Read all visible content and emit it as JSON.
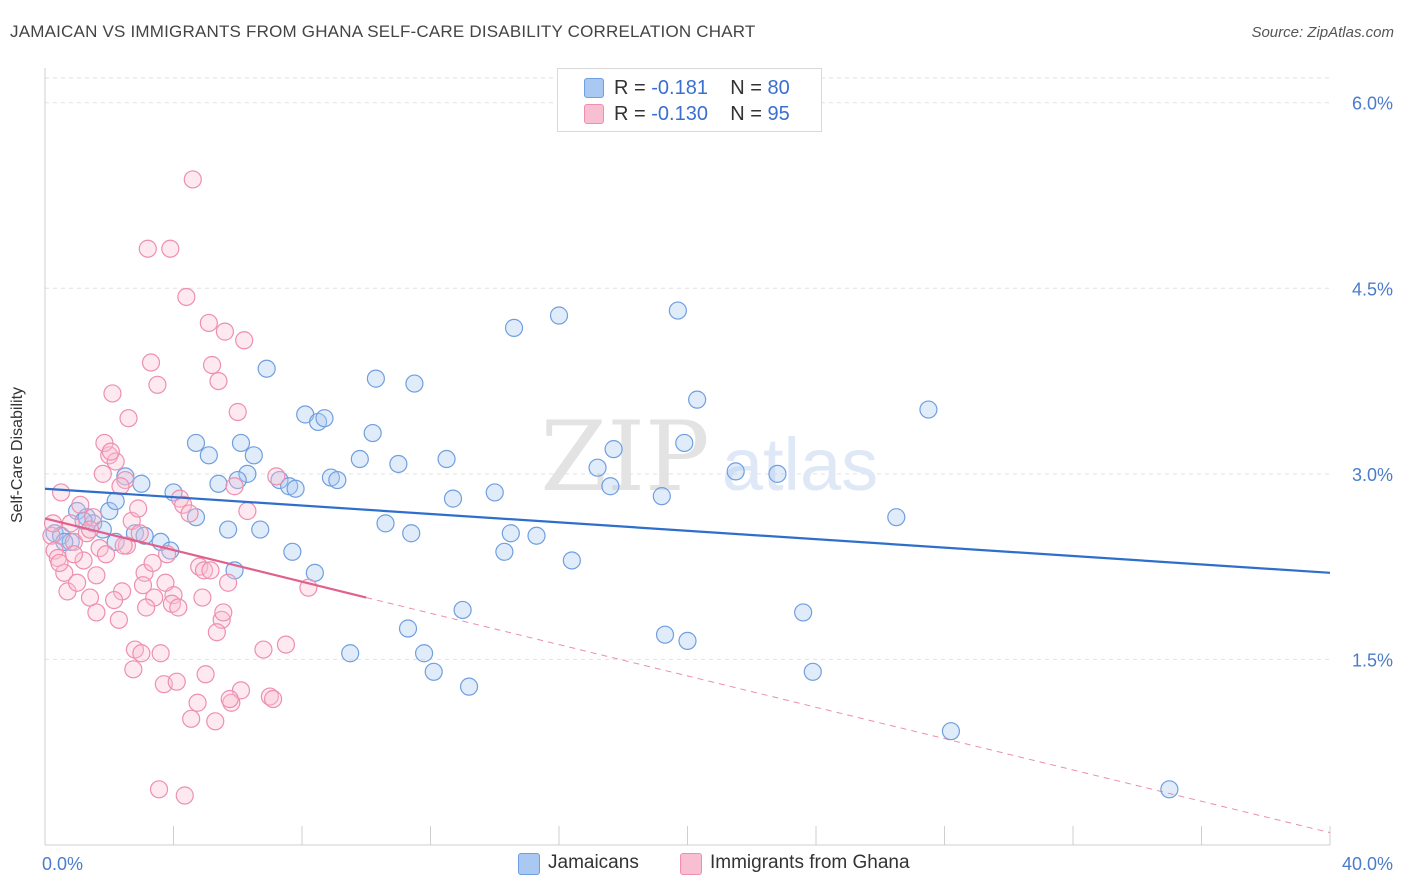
{
  "header": {
    "title": "JAMAICAN VS IMMIGRANTS FROM GHANA SELF-CARE DISABILITY CORRELATION CHART",
    "source": "Source: ZipAtlas.com"
  },
  "watermark": {
    "zip": "ZIP",
    "atlas": "atlas"
  },
  "legend": {
    "r_label": "R =",
    "n_label": "N =",
    "rows": [
      {
        "r": "-0.181",
        "n": "80",
        "color": "#a9c8f2",
        "border": "#6f9fe0"
      },
      {
        "r": "-0.130",
        "n": "95",
        "color": "#f8bfd2",
        "border": "#ee8fb0"
      }
    ]
  },
  "bottom_legend": [
    {
      "label": "Jamaicans",
      "color": "#a9c8f2",
      "border": "#6f9fe0"
    },
    {
      "label": "Immigrants from Ghana",
      "color": "#f8bfd2",
      "border": "#ee8fb0"
    }
  ],
  "chart_data": {
    "type": "scatter",
    "ylabel": "Self-Care Disability",
    "xlim": [
      0,
      40
    ],
    "ylim": [
      0,
      6.2
    ],
    "x_tick_labels": [
      {
        "value": 0,
        "label": "0.0%"
      },
      {
        "value": 40,
        "label": "40.0%"
      }
    ],
    "y_ticks": [
      {
        "value": 1.5,
        "label": "1.5%"
      },
      {
        "value": 3.0,
        "label": "3.0%"
      },
      {
        "value": 4.5,
        "label": "4.5%"
      },
      {
        "value": 6.0,
        "label": "6.0%"
      }
    ],
    "x_minor_ticks": [
      0,
      4,
      8,
      12,
      16,
      20,
      24,
      28,
      32,
      36,
      40
    ],
    "grid": true,
    "series": [
      {
        "name": "Jamaicans",
        "color": "#6f9fe0",
        "fill": "rgba(169,200,242,0.35)",
        "trend": {
          "x0": 0,
          "y0": 2.88,
          "x1": 40,
          "y1": 2.2,
          "color": "#2f6fcc"
        },
        "points": [
          [
            0.3,
            2.52
          ],
          [
            0.5,
            2.5
          ],
          [
            0.8,
            2.45
          ],
          [
            1.0,
            2.7
          ],
          [
            1.3,
            2.65
          ],
          [
            1.5,
            2.6
          ],
          [
            1.8,
            2.55
          ],
          [
            2.0,
            2.7
          ],
          [
            2.2,
            2.45
          ],
          [
            2.5,
            2.98
          ],
          [
            2.8,
            2.52
          ],
          [
            3.0,
            2.92
          ],
          [
            3.6,
            2.45
          ],
          [
            3.9,
            2.38
          ],
          [
            4.0,
            2.85
          ],
          [
            4.7,
            2.65
          ],
          [
            4.7,
            3.25
          ],
          [
            5.1,
            3.15
          ],
          [
            5.4,
            2.92
          ],
          [
            5.7,
            2.55
          ],
          [
            5.9,
            2.22
          ],
          [
            6.1,
            3.25
          ],
          [
            6.3,
            3.0
          ],
          [
            6.5,
            3.15
          ],
          [
            6.7,
            2.55
          ],
          [
            6.9,
            3.85
          ],
          [
            7.3,
            2.95
          ],
          [
            7.6,
            2.9
          ],
          [
            7.7,
            2.37
          ],
          [
            7.8,
            2.88
          ],
          [
            8.1,
            3.48
          ],
          [
            8.5,
            3.42
          ],
          [
            8.7,
            3.45
          ],
          [
            8.9,
            2.97
          ],
          [
            9.1,
            2.95
          ],
          [
            8.4,
            2.2
          ],
          [
            9.5,
            1.55
          ],
          [
            9.8,
            3.12
          ],
          [
            10.2,
            3.33
          ],
          [
            10.3,
            3.77
          ],
          [
            10.6,
            2.6
          ],
          [
            11.0,
            3.08
          ],
          [
            11.3,
            1.75
          ],
          [
            11.4,
            2.52
          ],
          [
            11.5,
            3.73
          ],
          [
            11.8,
            1.55
          ],
          [
            12.1,
            1.4
          ],
          [
            12.5,
            3.12
          ],
          [
            12.7,
            2.8
          ],
          [
            13.0,
            1.9
          ],
          [
            13.2,
            1.28
          ],
          [
            14.0,
            2.85
          ],
          [
            14.3,
            2.37
          ],
          [
            14.5,
            2.52
          ],
          [
            14.6,
            4.18
          ],
          [
            15.3,
            2.5
          ],
          [
            16.0,
            4.28
          ],
          [
            16.4,
            2.3
          ],
          [
            17.2,
            3.05
          ],
          [
            17.6,
            2.9
          ],
          [
            17.7,
            3.2
          ],
          [
            19.2,
            2.82
          ],
          [
            19.3,
            1.7
          ],
          [
            19.7,
            4.32
          ],
          [
            19.9,
            3.25
          ],
          [
            20.0,
            1.65
          ],
          [
            20.3,
            3.6
          ],
          [
            21.5,
            3.02
          ],
          [
            22.8,
            3.0
          ],
          [
            23.6,
            1.88
          ],
          [
            23.9,
            1.4
          ],
          [
            26.5,
            2.65
          ],
          [
            27.5,
            3.52
          ],
          [
            28.2,
            0.92
          ],
          [
            35.0,
            0.45
          ],
          [
            0.6,
            2.45
          ],
          [
            1.2,
            2.62
          ],
          [
            3.1,
            2.5
          ],
          [
            2.2,
            2.78
          ],
          [
            6.0,
            2.95
          ]
        ]
      },
      {
        "name": "Immigrants from Ghana",
        "color": "#ee8fb0",
        "fill": "rgba(248,191,210,0.35)",
        "trend": {
          "x0": 0,
          "y0": 2.64,
          "x1": 10,
          "y1": 2.0,
          "color": "#e0608e"
        },
        "trend_ext": {
          "x0": 10,
          "y0": 2.0,
          "x1": 40,
          "y1": 0.1
        },
        "points": [
          [
            0.2,
            2.5
          ],
          [
            0.3,
            2.38
          ],
          [
            0.4,
            2.32
          ],
          [
            0.5,
            2.85
          ],
          [
            0.6,
            2.2
          ],
          [
            0.7,
            2.05
          ],
          [
            0.8,
            2.6
          ],
          [
            0.9,
            2.45
          ],
          [
            1.0,
            2.12
          ],
          [
            1.1,
            2.75
          ],
          [
            1.2,
            2.3
          ],
          [
            1.3,
            2.52
          ],
          [
            1.4,
            2.0
          ],
          [
            1.5,
            2.65
          ],
          [
            1.6,
            2.18
          ],
          [
            1.7,
            2.4
          ],
          [
            1.8,
            3.0
          ],
          [
            1.9,
            2.35
          ],
          [
            2.0,
            3.15
          ],
          [
            2.1,
            3.65
          ],
          [
            2.2,
            3.1
          ],
          [
            2.3,
            1.82
          ],
          [
            2.4,
            2.05
          ],
          [
            2.5,
            2.95
          ],
          [
            2.6,
            3.45
          ],
          [
            2.7,
            2.62
          ],
          [
            2.8,
            1.58
          ],
          [
            2.9,
            2.72
          ],
          [
            3.0,
            1.55
          ],
          [
            3.1,
            2.2
          ],
          [
            3.2,
            4.82
          ],
          [
            3.3,
            3.9
          ],
          [
            3.4,
            2.0
          ],
          [
            3.5,
            3.72
          ],
          [
            3.6,
            1.55
          ],
          [
            3.7,
            1.3
          ],
          [
            3.8,
            2.35
          ],
          [
            3.9,
            4.82
          ],
          [
            4.0,
            2.02
          ],
          [
            4.1,
            1.32
          ],
          [
            4.2,
            2.8
          ],
          [
            4.3,
            2.75
          ],
          [
            4.4,
            4.43
          ],
          [
            4.5,
            2.68
          ],
          [
            4.6,
            5.38
          ],
          [
            4.8,
            2.25
          ],
          [
            4.9,
            2.0
          ],
          [
            5.0,
            1.38
          ],
          [
            5.1,
            4.22
          ],
          [
            5.2,
            3.88
          ],
          [
            5.3,
            1.0
          ],
          [
            5.4,
            3.75
          ],
          [
            5.5,
            1.82
          ],
          [
            5.6,
            4.15
          ],
          [
            5.7,
            2.12
          ],
          [
            5.8,
            1.15
          ],
          [
            5.9,
            2.9
          ],
          [
            6.0,
            3.5
          ],
          [
            6.1,
            1.25
          ],
          [
            6.2,
            4.08
          ],
          [
            6.3,
            2.7
          ],
          [
            0.25,
            2.6
          ],
          [
            0.45,
            2.28
          ],
          [
            0.9,
            2.35
          ],
          [
            1.4,
            2.55
          ],
          [
            1.6,
            1.88
          ],
          [
            1.85,
            3.25
          ],
          [
            2.05,
            3.18
          ],
          [
            2.15,
            1.98
          ],
          [
            2.35,
            2.9
          ],
          [
            2.55,
            2.42
          ],
          [
            2.75,
            1.42
          ],
          [
            2.95,
            2.52
          ],
          [
            3.05,
            2.1
          ],
          [
            3.15,
            1.92
          ],
          [
            3.35,
            2.28
          ],
          [
            3.55,
            0.45
          ],
          [
            3.75,
            2.12
          ],
          [
            3.95,
            1.95
          ],
          [
            4.15,
            1.92
          ],
          [
            4.35,
            0.4
          ],
          [
            4.55,
            1.02
          ],
          [
            4.75,
            1.15
          ],
          [
            4.95,
            2.22
          ],
          [
            5.15,
            2.22
          ],
          [
            5.35,
            1.72
          ],
          [
            5.55,
            1.88
          ],
          [
            5.75,
            1.18
          ],
          [
            7.0,
            1.2
          ],
          [
            7.2,
            2.98
          ],
          [
            7.5,
            1.62
          ],
          [
            8.2,
            2.08
          ],
          [
            6.8,
            1.58
          ],
          [
            7.1,
            1.18
          ],
          [
            2.45,
            2.42
          ]
        ]
      }
    ]
  }
}
